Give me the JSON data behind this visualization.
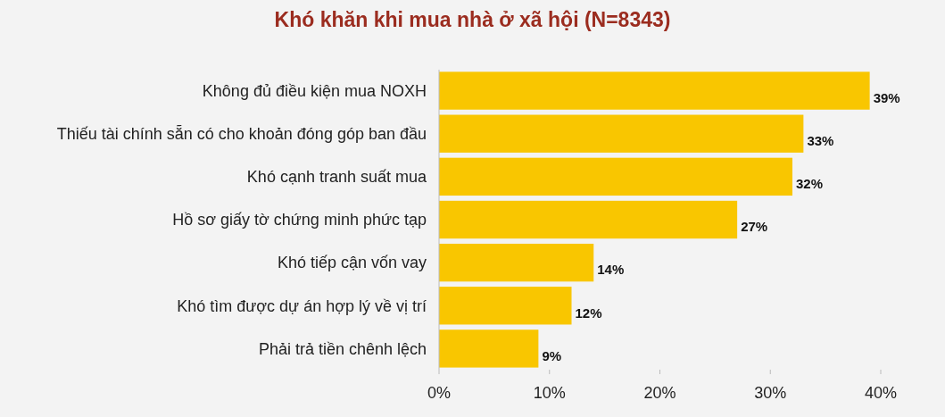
{
  "chart_data": {
    "type": "bar",
    "orientation": "horizontal",
    "title": "Khó khăn khi mua nhà ở xã hội (N=8343)",
    "categories": [
      "Không đủ điều kiện mua NOXH",
      "Thiếu tài chính sẵn có cho khoản đóng góp ban đầu",
      "Khó cạnh tranh suất mua",
      "Hồ sơ giấy tờ chứng minh phức tạp",
      "Khó tiếp cận vốn vay",
      "Khó tìm được dự án hợp lý về vị trí",
      "Phải trả tiền chênh lệch"
    ],
    "values": [
      39,
      33,
      32,
      27,
      14,
      12,
      9
    ],
    "value_labels": [
      "39%",
      "33%",
      "32%",
      "27%",
      "14%",
      "12%",
      "9%"
    ],
    "color": "#f9c600",
    "xlim": [
      0,
      40
    ],
    "xticks": [
      {
        "value": 0,
        "label": "0%"
      },
      {
        "value": 10,
        "label": "10%"
      },
      {
        "value": 20,
        "label": "20%"
      },
      {
        "value": 30,
        "label": "30%"
      },
      {
        "value": 40,
        "label": "40%"
      }
    ],
    "grid": false
  }
}
